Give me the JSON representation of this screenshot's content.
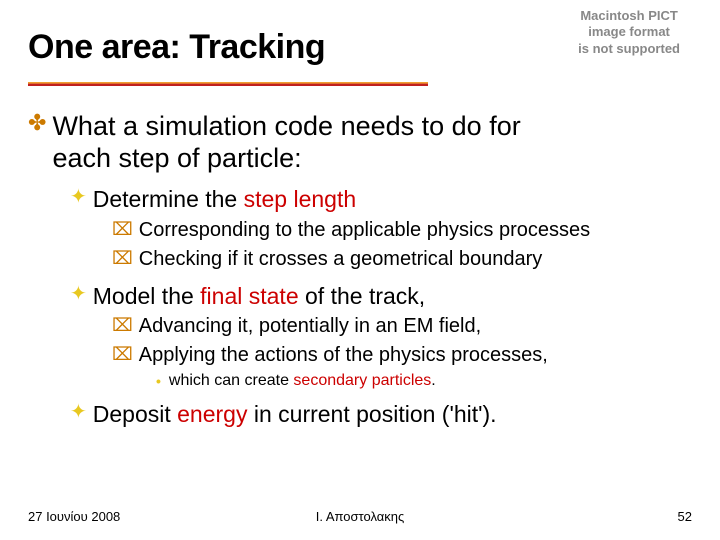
{
  "pict": {
    "line1": "Macintosh PICT",
    "line2": "image format",
    "line3": "is not supported"
  },
  "title": "One area: Tracking",
  "colors": {
    "accent_red": "#cc0000",
    "bullet_orange": "#cc7a00",
    "bullet_yellow": "#e8c820",
    "underline_top": "#f0a030",
    "underline_mid": "#e07030",
    "underline_bot": "#c02020",
    "pict_gray": "#888888"
  },
  "main": {
    "line1": "What a simulation code needs to do for",
    "line2": "each step of particle:"
  },
  "b1": {
    "pre": "Determine the ",
    "accent": "step length"
  },
  "b1a": "Corresponding to the applicable physics processes",
  "b1b": "Checking if it crosses a geometrical boundary",
  "b2": {
    "pre": "Model the ",
    "accent": "final state",
    "post": " of the track,"
  },
  "b2a": "Advancing it, potentially in an EM field,",
  "b2b": "Applying the actions of the physics processes,",
  "b2b1": {
    "pre": "which can create ",
    "accent": "secondary particles",
    "post": "."
  },
  "b3": {
    "pre": "Deposit ",
    "accent": "energy",
    "post": " in current position ('hit')."
  },
  "footer": {
    "date": "27 Ιουνίου 2008",
    "author": "Ι. Αποστολακης",
    "page": "52"
  }
}
